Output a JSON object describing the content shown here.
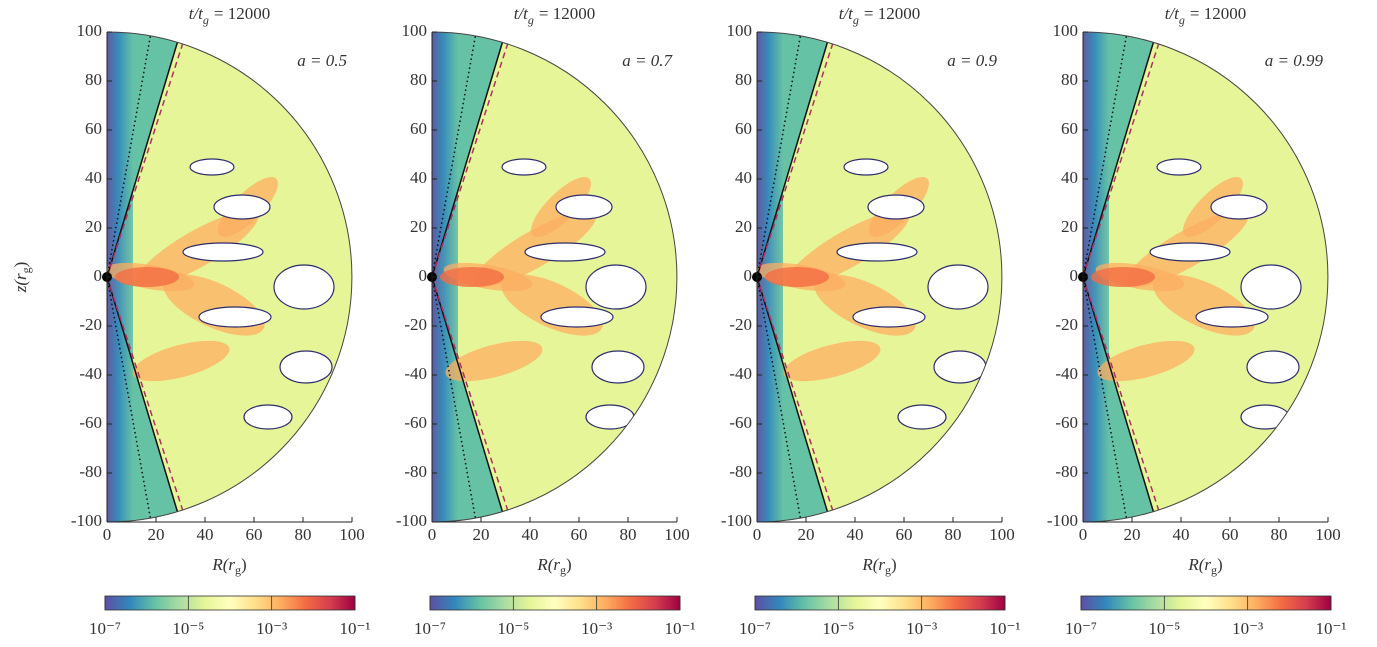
{
  "chart_data": [
    {
      "type": "image",
      "title": [
        "t/t",
        "g",
        "= 12000"
      ],
      "annotation": "a = 0.5",
      "xlabel": [
        "R(r",
        "g",
        ")"
      ],
      "ylabel": [
        "z(r",
        "g",
        ")"
      ],
      "xlim": [
        0,
        100
      ],
      "xticks": [
        0,
        20,
        40,
        60,
        80,
        100
      ],
      "ylim": [
        -100,
        100
      ],
      "yticks": [
        -100,
        -80,
        -60,
        -40,
        -20,
        0,
        20,
        40,
        60,
        80,
        100
      ],
      "colorbar": {
        "scale": "log",
        "lim": [
          1e-07,
          0.1
        ],
        "ticks": [
          {
            "value": 1e-07,
            "label": "10⁻⁷"
          },
          {
            "value": 1e-05,
            "label": "10⁻⁵"
          },
          {
            "value": 0.001,
            "label": "10⁻³"
          },
          {
            "value": 0.1,
            "label": "10⁻¹"
          }
        ],
        "colormap": [
          "#5e4fa2",
          "#3288bd",
          "#66c2a5",
          "#abdda4",
          "#e6f598",
          "#ffffbf",
          "#fee08b",
          "#fdae61",
          "#f46d43",
          "#d53e4f",
          "#9e0142"
        ]
      }
    },
    {
      "type": "image",
      "title": [
        "t/t",
        "g",
        "= 12000"
      ],
      "annotation": "a = 0.7",
      "xlabel": [
        "R(r",
        "g",
        ")"
      ],
      "xlim": [
        0,
        100
      ],
      "xticks": [
        0,
        20,
        40,
        60,
        80,
        100
      ],
      "ylim": [
        -100,
        100
      ],
      "yticks": [
        -100,
        -80,
        -60,
        -40,
        -20,
        0,
        20,
        40,
        60,
        80,
        100
      ],
      "colorbar": {
        "scale": "log",
        "lim": [
          1e-07,
          0.1
        ],
        "ticks": [
          {
            "value": 1e-07,
            "label": "10⁻⁷"
          },
          {
            "value": 1e-05,
            "label": "10⁻⁵"
          },
          {
            "value": 0.001,
            "label": "10⁻³"
          },
          {
            "value": 0.1,
            "label": "10⁻¹"
          }
        ],
        "colormap": [
          "#5e4fa2",
          "#3288bd",
          "#66c2a5",
          "#abdda4",
          "#e6f598",
          "#ffffbf",
          "#fee08b",
          "#fdae61",
          "#f46d43",
          "#d53e4f",
          "#9e0142"
        ]
      }
    },
    {
      "type": "image",
      "title": [
        "t/t",
        "g",
        "= 12000"
      ],
      "annotation": "a = 0.9",
      "xlabel": [
        "R(r",
        "g",
        ")"
      ],
      "xlim": [
        0,
        100
      ],
      "xticks": [
        0,
        20,
        40,
        60,
        80,
        100
      ],
      "ylim": [
        -100,
        100
      ],
      "yticks": [
        -100,
        -80,
        -60,
        -40,
        -20,
        0,
        20,
        40,
        60,
        80,
        100
      ],
      "colorbar": {
        "scale": "log",
        "lim": [
          1e-07,
          0.1
        ],
        "ticks": [
          {
            "value": 1e-07,
            "label": "10⁻⁷"
          },
          {
            "value": 1e-05,
            "label": "10⁻⁵"
          },
          {
            "value": 0.001,
            "label": "10⁻³"
          },
          {
            "value": 0.1,
            "label": "10⁻¹"
          }
        ],
        "colormap": [
          "#5e4fa2",
          "#3288bd",
          "#66c2a5",
          "#abdda4",
          "#e6f598",
          "#ffffbf",
          "#fee08b",
          "#fdae61",
          "#f46d43",
          "#d53e4f",
          "#9e0142"
        ]
      }
    },
    {
      "type": "image",
      "title": [
        "t/t",
        "g",
        "= 12000"
      ],
      "annotation": "a = 0.99",
      "xlabel": [
        "R(r",
        "g",
        ")"
      ],
      "xlim": [
        0,
        100
      ],
      "xticks": [
        0,
        20,
        40,
        60,
        80,
        100
      ],
      "ylim": [
        -100,
        100
      ],
      "yticks": [
        -100,
        -80,
        -60,
        -40,
        -20,
        0,
        20,
        40,
        60,
        80,
        100
      ],
      "colorbar": {
        "scale": "log",
        "lim": [
          1e-07,
          0.1
        ],
        "ticks": [
          {
            "value": 1e-07,
            "label": "10⁻⁷"
          },
          {
            "value": 1e-05,
            "label": "10⁻⁵"
          },
          {
            "value": 0.001,
            "label": "10⁻³"
          },
          {
            "value": 0.1,
            "label": "10⁻¹"
          }
        ],
        "colormap": [
          "#5e4fa2",
          "#3288bd",
          "#66c2a5",
          "#abdda4",
          "#e6f598",
          "#ffffbf",
          "#fee08b",
          "#fdae61",
          "#f46d43",
          "#d53e4f",
          "#9e0142"
        ]
      }
    }
  ]
}
